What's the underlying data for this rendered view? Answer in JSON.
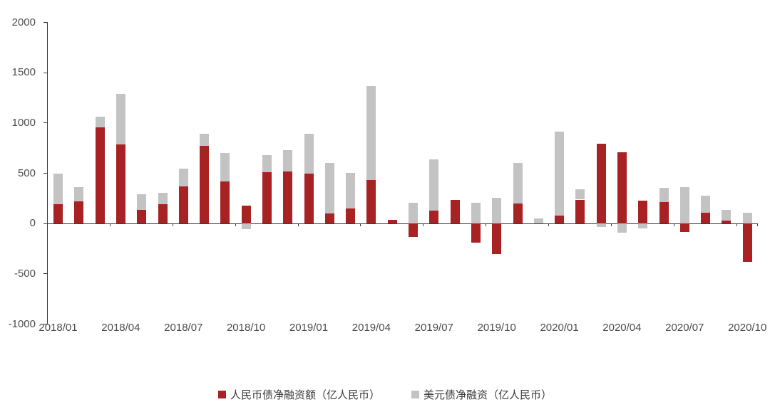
{
  "chart_data": {
    "type": "bar",
    "subtype": "stacked-column",
    "title": "",
    "categories": [
      "2018/01",
      "2018/02",
      "2018/03",
      "2018/04",
      "2018/05",
      "2018/06",
      "2018/07",
      "2018/08",
      "2018/09",
      "2018/10",
      "2018/11",
      "2018/12",
      "2019/01",
      "2019/02",
      "2019/03",
      "2019/04",
      "2019/05",
      "2019/06",
      "2019/07",
      "2019/08",
      "2019/09",
      "2019/10",
      "2019/11",
      "2019/12",
      "2020/01",
      "2020/02",
      "2020/03",
      "2020/04",
      "2020/05",
      "2020/06",
      "2020/07",
      "2020/08",
      "2020/09",
      "2020/10"
    ],
    "series": [
      {
        "name": "人民币债净融资额（亿人民币）",
        "color": "#A82123",
        "values": [
          190,
          215,
          950,
          780,
          130,
          190,
          365,
          770,
          415,
          175,
          505,
          515,
          490,
          95,
          150,
          430,
          35,
          -135,
          125,
          235,
          -195,
          -305,
          195,
          0,
          75,
          235,
          790,
          705,
          225,
          210,
          -90,
          105,
          25,
          -385
        ]
      },
      {
        "name": "美元债净融资（亿人民币）",
        "color": "#C3C3C4",
        "values": [
          305,
          145,
          110,
          505,
          155,
          110,
          175,
          120,
          280,
          -60,
          170,
          210,
          400,
          505,
          350,
          935,
          0,
          200,
          510,
          0,
          205,
          255,
          405,
          50,
          835,
          100,
          -35,
          -95,
          -50,
          140,
          360,
          170,
          105,
          105
        ]
      }
    ],
    "ylim": [
      -1000,
      2000
    ],
    "y_ticks": [
      2000,
      1500,
      1000,
      500,
      0,
      -500,
      -1000
    ],
    "y_tick_labels": [
      "2000",
      "1500",
      "1000",
      "500",
      "0",
      "-500",
      "-1000"
    ],
    "x_tick_label_every": 3,
    "x_tick_labels": [
      "2018/01",
      "2018/04",
      "2018/07",
      "2018/10",
      "2019/01",
      "2019/04",
      "2019/07",
      "2019/10",
      "2020/01",
      "2020/04",
      "2020/07",
      "2020/10"
    ],
    "grid": false,
    "legend_position": "bottom"
  },
  "style": {
    "axis_text_color": "#4d4d4d",
    "axis_line_color": "#3a3a3a",
    "legend_text_color": "#3a3a3a",
    "background": "#ffffff"
  }
}
